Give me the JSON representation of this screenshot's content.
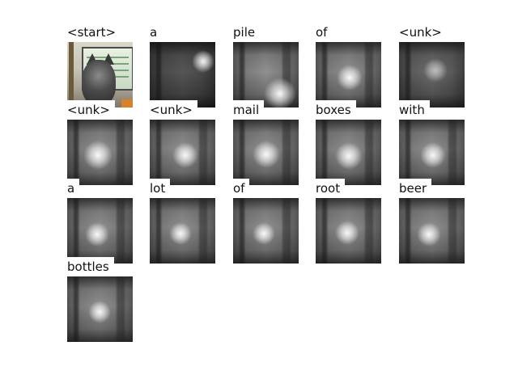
{
  "words": [
    "<start>",
    "a",
    "pile",
    "of",
    "<unk>",
    "<unk>",
    "<unk>",
    "mail",
    "boxes",
    "with",
    "a",
    "lot",
    "of",
    "root",
    "beer",
    "bottles"
  ]
}
